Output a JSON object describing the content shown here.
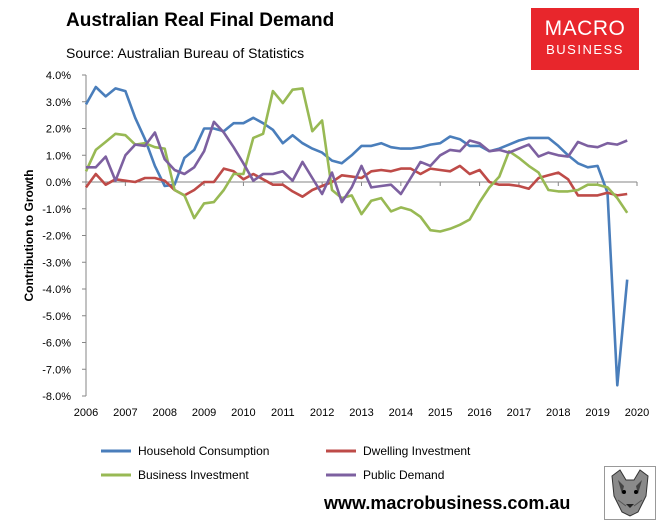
{
  "header": {
    "title": "Australian Real Final Demand",
    "subtitle": "Source: Australian Bureau of Statistics"
  },
  "logo": {
    "line1": "MACRO",
    "line2": "BUSINESS",
    "color": "#e8262c"
  },
  "footer": {
    "website": "www.macrobusiness.com.au"
  },
  "chart_data": {
    "type": "line",
    "title": "Australian Real Final Demand",
    "xlabel": "",
    "ylabel": "Contribution to Growth",
    "xlim": [
      2006,
      2020
    ],
    "ylim": [
      -8,
      4
    ],
    "x_ticks": [
      "2006",
      "2007",
      "2008",
      "2009",
      "2010",
      "2011",
      "2012",
      "2013",
      "2014",
      "2015",
      "2016",
      "2017",
      "2018",
      "2019",
      "2020"
    ],
    "y_ticks": [
      "4.0%",
      "3.0%",
      "2.0%",
      "1.0%",
      "0.0%",
      "-1.0%",
      "-2.0%",
      "-3.0%",
      "-4.0%",
      "-5.0%",
      "-6.0%",
      "-7.0%",
      "-8.0%"
    ],
    "grid": false,
    "legend_position": "bottom",
    "x": [
      2006.0,
      2006.25,
      2006.5,
      2006.75,
      2007.0,
      2007.25,
      2007.5,
      2007.75,
      2008.0,
      2008.25,
      2008.5,
      2008.75,
      2009.0,
      2009.25,
      2009.5,
      2009.75,
      2010.0,
      2010.25,
      2010.5,
      2010.75,
      2011.0,
      2011.25,
      2011.5,
      2011.75,
      2012.0,
      2012.25,
      2012.5,
      2012.75,
      2013.0,
      2013.25,
      2013.5,
      2013.75,
      2014.0,
      2014.25,
      2014.5,
      2014.75,
      2015.0,
      2015.25,
      2015.5,
      2015.75,
      2016.0,
      2016.25,
      2016.5,
      2016.75,
      2017.0,
      2017.25,
      2017.5,
      2017.75,
      2018.0,
      2018.25,
      2018.5,
      2018.75,
      2019.0,
      2019.25,
      2019.5,
      2019.75
    ],
    "series": [
      {
        "name": "Household Consumption",
        "color": "#4a7ebb",
        "values": [
          2.9,
          3.55,
          3.2,
          3.5,
          3.4,
          2.4,
          1.6,
          0.6,
          -0.15,
          -0.1,
          0.9,
          1.2,
          2.0,
          2.0,
          1.9,
          2.2,
          2.2,
          2.4,
          2.2,
          1.95,
          1.45,
          1.75,
          1.45,
          1.25,
          1.1,
          0.8,
          0.7,
          1.0,
          1.35,
          1.35,
          1.45,
          1.3,
          1.25,
          1.25,
          1.3,
          1.4,
          1.45,
          1.7,
          1.6,
          1.35,
          1.35,
          1.15,
          1.25,
          1.4,
          1.55,
          1.65,
          1.65,
          1.65,
          1.35,
          1.0,
          0.7,
          0.55,
          0.6,
          -0.4,
          -7.6,
          -3.65
        ]
      },
      {
        "name": "Dwelling Investment",
        "color": "#be4b48",
        "values": [
          -0.2,
          0.3,
          -0.1,
          0.1,
          0.05,
          0.0,
          0.15,
          0.15,
          0.05,
          -0.3,
          -0.5,
          -0.3,
          0.0,
          0.0,
          0.5,
          0.4,
          0.1,
          0.3,
          0.1,
          -0.1,
          -0.1,
          -0.35,
          -0.55,
          -0.3,
          -0.15,
          0.0,
          0.25,
          0.2,
          0.15,
          0.4,
          0.45,
          0.4,
          0.5,
          0.5,
          0.3,
          0.5,
          0.45,
          0.4,
          0.6,
          0.3,
          0.45,
          0.0,
          -0.1,
          -0.1,
          -0.15,
          -0.25,
          0.15,
          0.25,
          0.35,
          0.1,
          -0.5,
          -0.5,
          -0.5,
          -0.4,
          -0.5,
          -0.45
        ]
      },
      {
        "name": "Business Investment",
        "color": "#98b954",
        "values": [
          0.4,
          1.2,
          1.5,
          1.8,
          1.75,
          1.4,
          1.45,
          1.3,
          1.25,
          -0.3,
          -0.5,
          -1.35,
          -0.8,
          -0.75,
          -0.3,
          0.3,
          0.3,
          1.65,
          1.8,
          3.4,
          2.95,
          3.45,
          3.5,
          1.9,
          2.3,
          -0.3,
          -0.6,
          -0.5,
          -1.2,
          -0.7,
          -0.6,
          -1.1,
          -0.95,
          -1.05,
          -1.3,
          -1.8,
          -1.85,
          -1.75,
          -1.6,
          -1.4,
          -0.75,
          -0.2,
          0.2,
          1.15,
          0.9,
          0.6,
          0.35,
          -0.3,
          -0.35,
          -0.35,
          -0.3,
          -0.1,
          -0.1,
          -0.2,
          -0.6,
          -1.15
        ]
      },
      {
        "name": "Public Demand",
        "color": "#7d60a0",
        "values": [
          0.55,
          0.55,
          0.95,
          0.05,
          1.0,
          1.4,
          1.35,
          1.85,
          0.85,
          0.45,
          0.3,
          0.55,
          1.15,
          2.25,
          1.85,
          1.3,
          0.7,
          0.05,
          0.3,
          0.3,
          0.4,
          0.05,
          0.75,
          0.15,
          -0.45,
          0.35,
          -0.75,
          -0.2,
          0.6,
          -0.2,
          -0.15,
          -0.1,
          -0.45,
          0.15,
          0.75,
          0.6,
          1.0,
          1.2,
          1.15,
          1.55,
          1.45,
          1.15,
          1.2,
          1.1,
          1.25,
          1.4,
          0.95,
          1.1,
          1.0,
          0.95,
          1.5,
          1.35,
          1.3,
          1.45,
          1.4,
          1.55
        ]
      }
    ]
  }
}
